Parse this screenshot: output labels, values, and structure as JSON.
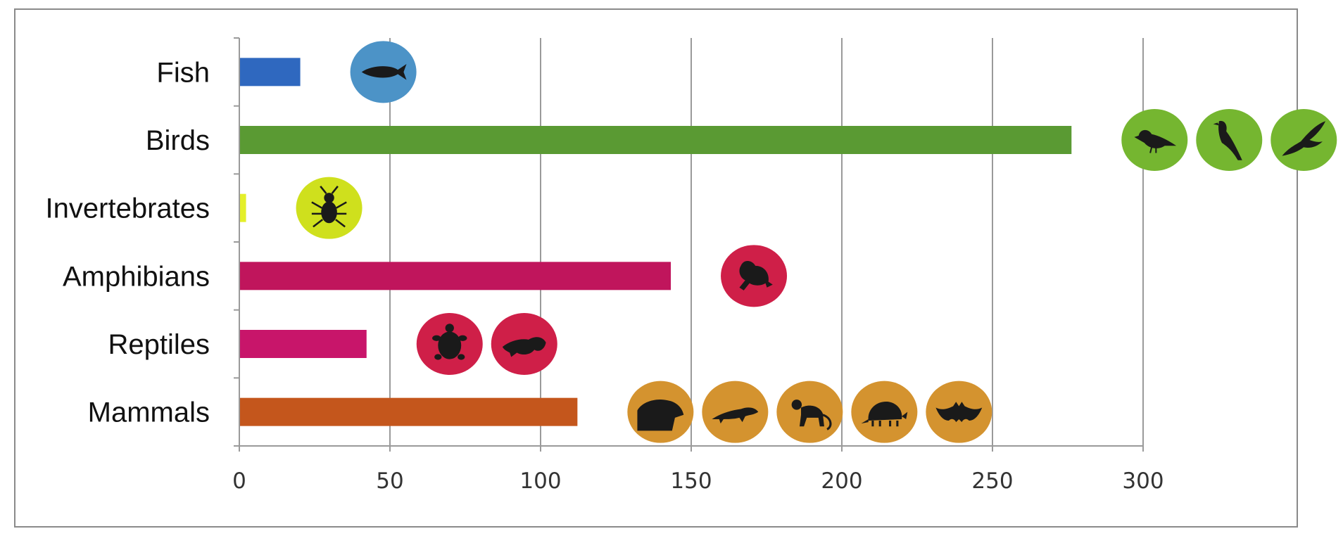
{
  "chart_data": {
    "type": "bar",
    "orientation": "horizontal",
    "title": "",
    "xlabel": "",
    "ylabel": "",
    "categories": [
      "Fish",
      "Birds",
      "Invertebrates",
      "Amphibians",
      "Reptiles",
      "Mammals"
    ],
    "values": [
      20,
      276,
      2,
      143,
      42,
      112
    ],
    "colors": [
      "#2f68bf",
      "#5a9a33",
      "#e4ef2a",
      "#c0155c",
      "#c8156a",
      "#c4561c"
    ],
    "xlim": [
      0,
      300
    ],
    "xticks": [
      "0",
      "50",
      "100",
      "150",
      "200",
      "250",
      "300"
    ],
    "grid": true,
    "legend": "none",
    "icons": [
      {
        "category": "Fish",
        "circle_color": "#4c93c7",
        "names": [
          "fish-icon"
        ]
      },
      {
        "category": "Birds",
        "circle_color": "#75b630",
        "names": [
          "songbird-icon",
          "magpie-icon",
          "flying-bird-icon"
        ]
      },
      {
        "category": "Invertebrates",
        "circle_color": "#cfe01d",
        "names": [
          "beetle-icon"
        ]
      },
      {
        "category": "Amphibians",
        "circle_color": "#cf1f48",
        "names": [
          "frog-icon"
        ]
      },
      {
        "category": "Reptiles",
        "circle_color": "#cf1f48",
        "names": [
          "turtle-icon",
          "lizard-icon"
        ]
      },
      {
        "category": "Mammals",
        "circle_color": "#d4932f",
        "names": [
          "rodent-icon",
          "otter-icon",
          "monkey-icon",
          "armadillo-icon",
          "bat-icon"
        ]
      }
    ]
  }
}
